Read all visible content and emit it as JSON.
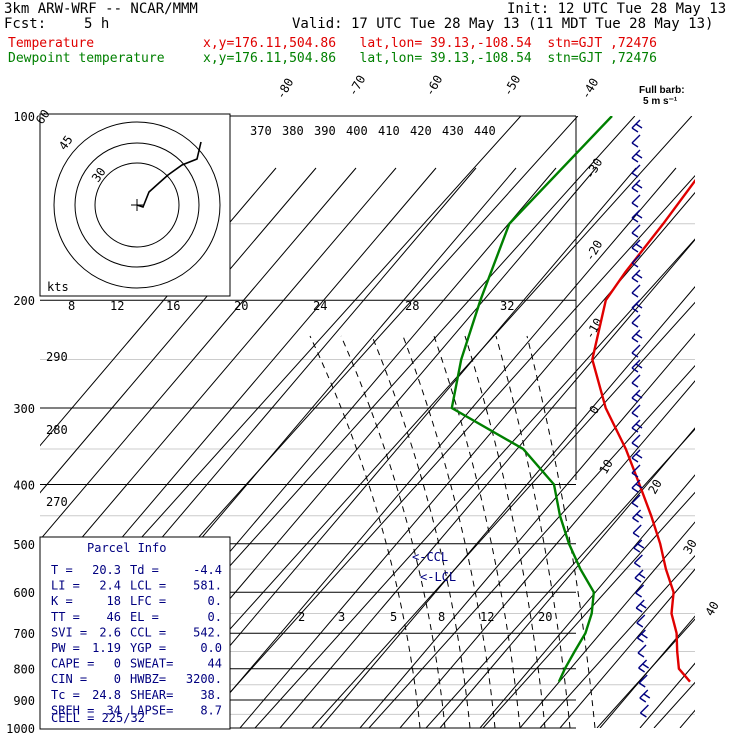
{
  "header": {
    "model": "3km ARW-WRF -- NCAR/MMM",
    "init": "Init: 12 UTC Tue 28 May 13",
    "fcst_label": "Fcst:",
    "fcst_value": "5 h",
    "valid": "Valid: 17 UTC Tue 28 May 13 (11 MDT Tue 28 May 13)",
    "temp_label": "Temperature",
    "temp_info": "x,y=176.11,504.86   lat,lon= 39.13,-108.54  stn=GJT ,72476",
    "dew_label": "Dewpoint temperature",
    "dew_info": "x,y=176.11,504.86   lat,lon= 39.13,-108.54  stn=GJT ,72476"
  },
  "wind_key": {
    "line1": "Full barb:",
    "line2": "5 m s⁻¹"
  },
  "hodograph": {
    "units": "kts",
    "ring_labels": [
      "30",
      "45"
    ]
  },
  "parcel": {
    "title": "Parcel Info",
    "rows": [
      [
        "T  =",
        "20.3",
        "Td =",
        "-4.4"
      ],
      [
        "LI =",
        "2.4",
        "LCL =",
        "581."
      ],
      [
        "K  =",
        "18",
        "LFC =",
        "0."
      ],
      [
        "TT =",
        "46",
        "EL  =",
        "0."
      ],
      [
        "SVI =",
        "2.6",
        "CCL =",
        "542."
      ],
      [
        "PW =",
        "1.19",
        "YGP =",
        "0.0"
      ],
      [
        "CAPE =",
        "0",
        "SWEAT=",
        "44"
      ],
      [
        "CIN =",
        "0",
        "HWBZ=",
        "3200."
      ],
      [
        "Tc =",
        "24.8",
        "SHEAR=",
        "38."
      ],
      [
        "SREH =",
        "34",
        "LAPSE=",
        "8.7"
      ]
    ],
    "cell": "CELL = 225/32"
  },
  "markers": {
    "ccl": "<-CCL",
    "lcl": "<-LCL"
  },
  "chart_data": {
    "type": "line",
    "x_axis": "temperature (C), skewed",
    "y_axis": "pressure (hPa), log scale",
    "pressure_levels": [
      100,
      200,
      300,
      400,
      500,
      600,
      700,
      800,
      900,
      1000
    ],
    "temperature_labels": [
      "-80",
      "-70",
      "-60",
      "-50",
      "-40",
      "-30",
      "-20",
      "-10",
      "0",
      "10",
      "20",
      "30",
      "40"
    ],
    "theta_labels_top": [
      "370",
      "380",
      "390",
      "400",
      "410",
      "420",
      "430",
      "440"
    ],
    "theta_labels_left": [
      "290",
      "280",
      "270"
    ],
    "mixing_ratio_labels_mid": [
      "8",
      "12",
      "16",
      "20",
      "24",
      "28",
      "32"
    ],
    "mixing_ratio_labels_low": [
      "2",
      "3",
      "5",
      "8",
      "12",
      "20"
    ],
    "series": [
      {
        "name": "Temperature",
        "color": "#e00000",
        "points": [
          [
            100,
            -61
          ],
          [
            150,
            -58
          ],
          [
            180,
            -57
          ],
          [
            200,
            -56
          ],
          [
            250,
            -49
          ],
          [
            300,
            -39
          ],
          [
            350,
            -29
          ],
          [
            400,
            -21
          ],
          [
            450,
            -14
          ],
          [
            500,
            -8
          ],
          [
            550,
            -3
          ],
          [
            600,
            2
          ],
          [
            650,
            5
          ],
          [
            700,
            9
          ],
          [
            750,
            12
          ],
          [
            800,
            15
          ],
          [
            840,
            19
          ]
        ]
      },
      {
        "name": "Dewpoint temperature",
        "color": "#008000",
        "points": [
          [
            100,
            -84
          ],
          [
            150,
            -85
          ],
          [
            200,
            -78
          ],
          [
            250,
            -72
          ],
          [
            300,
            -66
          ],
          [
            350,
            -47
          ],
          [
            400,
            -36
          ],
          [
            450,
            -30
          ],
          [
            500,
            -24
          ],
          [
            550,
            -18
          ],
          [
            600,
            -12
          ],
          [
            650,
            -9
          ],
          [
            700,
            -7
          ],
          [
            750,
            -6
          ],
          [
            800,
            -5
          ],
          [
            840,
            -4
          ]
        ]
      }
    ],
    "wind_barbs": {
      "color": "#000080",
      "count": 40
    }
  }
}
